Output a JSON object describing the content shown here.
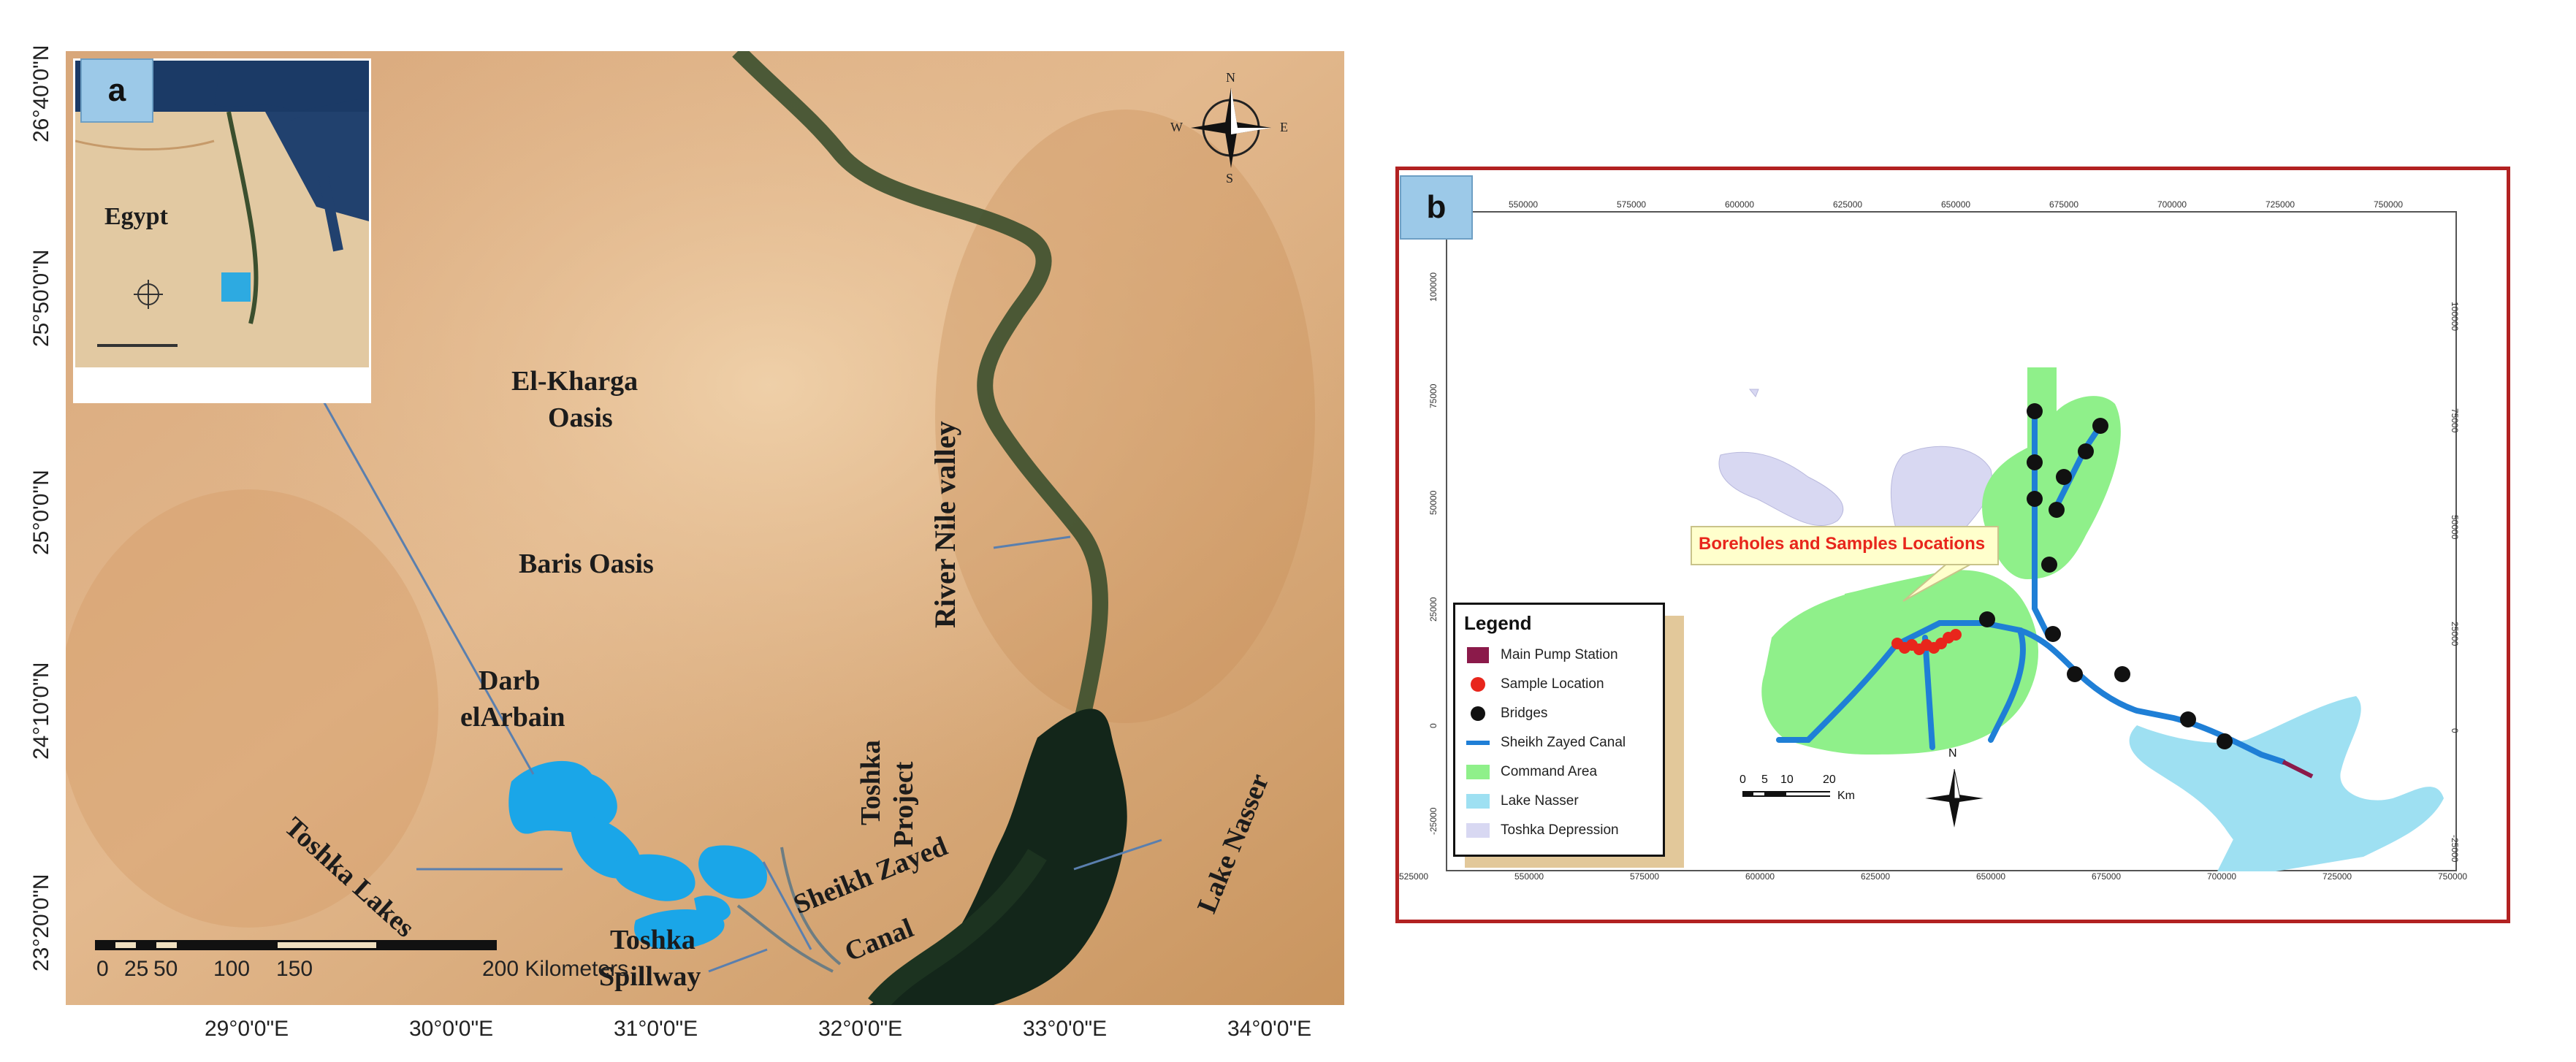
{
  "panel_a": {
    "tag": "a",
    "lat_labels": [
      "26°40'0\"N",
      "25°50'0\"N",
      "25°0'0\"N",
      "24°10'0\"N",
      "23°20'0\"N"
    ],
    "lon_labels": [
      "29°0'0\"E",
      "30°0'0\"E",
      "31°0'0\"E",
      "32°0'0\"E",
      "33°0'0\"E",
      "34°0'0\"E"
    ],
    "places": {
      "egypt": "Egypt",
      "kharga": "El-Kharga",
      "kharga2": "Oasis",
      "baris": "Baris Oasis",
      "darb": "Darb",
      "darb2": "elArbain",
      "toshka_lakes": "Toshka Lakes",
      "toshka_spillway": "Toshka",
      "toshka_spillway2": "Spillway",
      "toshka_project": "Toshka",
      "toshka_project2": "Project",
      "sheikh": "Sheikh Zayed",
      "sheikh2": "Canal",
      "river": "River Nile valley",
      "lake_nasser": "Lake Nasser"
    },
    "scale": {
      "ticks": [
        "0",
        "25",
        "50",
        "100",
        "150",
        "200 Kilometers"
      ]
    },
    "compass": {
      "n": "N",
      "s": "S",
      "e": "E",
      "w": "W"
    }
  },
  "panel_b": {
    "tag": "b",
    "callout": "Boreholes and Samples Locations",
    "legend": {
      "title": "Legend",
      "items": [
        {
          "label": "Main Pump Station",
          "color": "#8b1a4a",
          "kind": "square"
        },
        {
          "label": "Sample Location",
          "color": "#e8261c",
          "kind": "redstar"
        },
        {
          "label": "Bridges",
          "color": "#111111",
          "kind": "dot"
        },
        {
          "label": "Sheikh Zayed Canal",
          "color": "#1f7fd6",
          "kind": "line"
        },
        {
          "label": "Command Area",
          "color": "#8ff08a",
          "kind": "fill"
        },
        {
          "label": "Lake Nasser",
          "color": "#9ee0f2",
          "kind": "fill"
        },
        {
          "label": "Toshka Depression",
          "color": "#d8d8f2",
          "kind": "fill"
        }
      ]
    },
    "scalebar": {
      "ticks": [
        "0",
        "5",
        "10",
        "20"
      ],
      "unit": "Km"
    },
    "north": "N",
    "x_ticks": [
      "525000",
      "550000",
      "575000",
      "600000",
      "625000",
      "650000",
      "675000",
      "700000",
      "725000",
      "750000"
    ],
    "y_ticks": [
      "100000",
      "75000",
      "50000",
      "25000",
      "0",
      "-25000"
    ],
    "top_ticks": [
      "550000",
      "575000",
      "600000",
      "625000",
      "650000",
      "675000",
      "700000",
      "725000",
      "750000"
    ]
  }
}
